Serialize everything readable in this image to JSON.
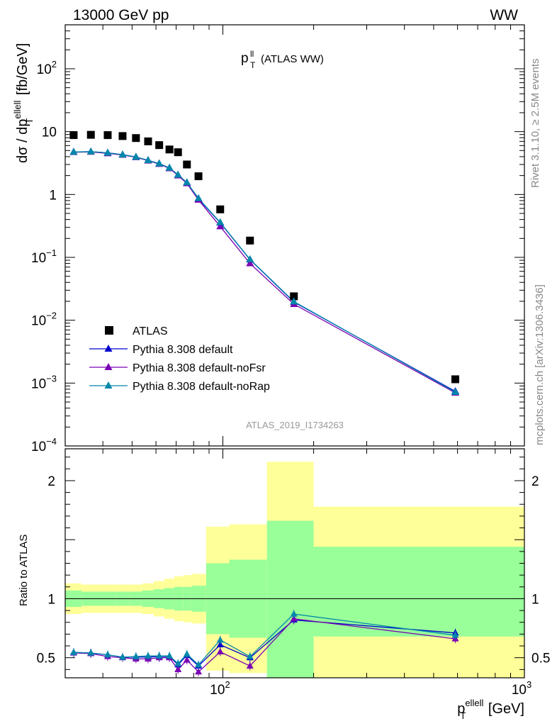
{
  "header": {
    "energy_label": "13000 GeV pp",
    "process_label": "WW",
    "plot_title_main": "p",
    "plot_title_sup": "ll",
    "plot_title_sub": "T",
    "plot_title_tail": " (ATLAS WW)",
    "analysis_label": "ATLAS_2019_I1734263"
  },
  "side_labels": {
    "rivet": "Rivet 3.1.10, ≥ 2.5M events",
    "mcplots": "mcplots.cern.ch [arXiv:1306.3436]"
  },
  "axes": {
    "ylabel_main": "dσ / dp",
    "ylabel_main_sup": "ellell",
    "ylabel_main_sub": "T",
    "ylabel_main_unit": " [fb/GeV]",
    "ylabel_ratio": "Ratio to ATLAS",
    "xlabel_main": "p",
    "xlabel_sup": "ellell",
    "xlabel_sub": "T",
    "xlabel_unit": " [GeV]"
  },
  "legend": {
    "entries": [
      {
        "label": "ATLAS",
        "color": "#000000",
        "marker": "square"
      },
      {
        "label": "Pythia 8.308 default",
        "color": "#0000cc",
        "marker": "triangle"
      },
      {
        "label": "Pythia 8.308 default-noFsr",
        "color": "#7b00b4",
        "marker": "triangle"
      },
      {
        "label": "Pythia 8.308 default-noRap",
        "color": "#0088aa",
        "marker": "triangle"
      }
    ]
  },
  "chart_data": [
    {
      "type": "scatter",
      "panel": "main",
      "x_scale": "log",
      "y_scale": "log",
      "xlim": [
        30,
        1000
      ],
      "ylim": [
        0.0001,
        500
      ],
      "x_ticks": [
        {
          "value": 100,
          "base": "10",
          "exp": "2"
        },
        {
          "value": 1000,
          "base": "10",
          "exp": "3"
        }
      ],
      "y_ticks": [
        {
          "value": 0.0001,
          "base": "10",
          "exp": "−4"
        },
        {
          "value": 0.001,
          "base": "10",
          "exp": "−3"
        },
        {
          "value": 0.01,
          "base": "10",
          "exp": "−2"
        },
        {
          "value": 0.1,
          "base": "10",
          "exp": "−1"
        },
        {
          "value": 1,
          "base": "1",
          "exp": ""
        },
        {
          "value": 10,
          "base": "10",
          "exp": ""
        },
        {
          "value": 100,
          "base": "10",
          "exp": "2"
        }
      ],
      "x": [
        32,
        36.5,
        41.5,
        46.5,
        51.5,
        56.5,
        61.5,
        66.5,
        71,
        76,
        83,
        98,
        123,
        172,
        590
      ],
      "series": [
        {
          "name": "ATLAS",
          "color": "#000000",
          "marker": "square",
          "values": [
            8.8,
            8.9,
            8.8,
            8.5,
            7.9,
            7.0,
            6.1,
            5.2,
            4.7,
            3.0,
            1.95,
            0.58,
            0.185,
            0.024,
            0.00115
          ]
        },
        {
          "name": "Pythia 8.308 default",
          "color": "#0000cc",
          "marker": "triangle",
          "values": [
            4.75,
            4.8,
            4.6,
            4.3,
            3.95,
            3.5,
            3.1,
            2.65,
            2.05,
            1.55,
            0.85,
            0.355,
            0.092,
            0.0195,
            0.00074
          ]
        },
        {
          "name": "Pythia 8.308 default-noFsr",
          "color": "#7b00b4",
          "marker": "triangle",
          "values": [
            4.7,
            4.75,
            4.5,
            4.25,
            3.9,
            3.45,
            3.05,
            2.6,
            2.0,
            1.5,
            0.82,
            0.31,
            0.08,
            0.018,
            0.0007
          ]
        },
        {
          "name": "Pythia 8.308 default-noRap",
          "color": "#0088aa",
          "marker": "triangle",
          "values": [
            4.75,
            4.8,
            4.6,
            4.3,
            3.95,
            3.5,
            3.1,
            2.65,
            2.05,
            1.55,
            0.87,
            0.36,
            0.093,
            0.0198,
            0.00072
          ]
        }
      ]
    },
    {
      "type": "scatter",
      "panel": "ratio",
      "x_scale": "log",
      "y_scale": "linear",
      "xlim": [
        30,
        1000
      ],
      "ylim": [
        0.33,
        2.27
      ],
      "y_ticks": [
        0.5,
        1,
        2
      ],
      "y_tick_labels": [
        "0.5",
        "1",
        "2"
      ],
      "x_tick_labels": [
        {
          "value": 100,
          "base": "10",
          "exp": "2"
        },
        {
          "value": 1000,
          "base": "10",
          "exp": "3"
        }
      ],
      "x": [
        32,
        36.5,
        41.5,
        46.5,
        51.5,
        56.5,
        61.5,
        66.5,
        71,
        76,
        83,
        98,
        123,
        172,
        590
      ],
      "bins": [
        [
          30,
          34
        ],
        [
          34,
          39
        ],
        [
          39,
          44
        ],
        [
          44,
          49
        ],
        [
          49,
          54
        ],
        [
          54,
          59
        ],
        [
          59,
          64
        ],
        [
          64,
          69
        ],
        [
          69,
          74
        ],
        [
          74,
          79
        ],
        [
          79,
          88
        ],
        [
          88,
          105
        ],
        [
          105,
          140
        ],
        [
          140,
          200
        ],
        [
          200,
          1000
        ]
      ],
      "band_inner": [
        [
          0.93,
          1.07
        ],
        [
          0.94,
          1.06
        ],
        [
          0.94,
          1.06
        ],
        [
          0.94,
          1.06
        ],
        [
          0.94,
          1.06
        ],
        [
          0.93,
          1.07
        ],
        [
          0.92,
          1.08
        ],
        [
          0.91,
          1.09
        ],
        [
          0.9,
          1.1
        ],
        [
          0.9,
          1.1
        ],
        [
          0.89,
          1.11
        ],
        [
          0.7,
          1.3
        ],
        [
          0.67,
          1.33
        ],
        [
          0.33,
          1.66
        ],
        [
          0.68,
          1.44
        ]
      ],
      "band_outer": [
        [
          0.87,
          1.13
        ],
        [
          0.88,
          1.12
        ],
        [
          0.88,
          1.12
        ],
        [
          0.88,
          1.12
        ],
        [
          0.88,
          1.12
        ],
        [
          0.87,
          1.13
        ],
        [
          0.85,
          1.15
        ],
        [
          0.83,
          1.17
        ],
        [
          0.81,
          1.19
        ],
        [
          0.8,
          1.2
        ],
        [
          0.79,
          1.21
        ],
        [
          0.39,
          1.61
        ],
        [
          0.37,
          1.63
        ],
        [
          0.33,
          2.16
        ],
        [
          0.33,
          1.78
        ]
      ],
      "band_colors": {
        "inner": "#99ff99",
        "outer": "#ffff99"
      },
      "series": [
        {
          "name": "Pythia 8.308 default",
          "color": "#0000cc",
          "values": [
            0.545,
            0.54,
            0.525,
            0.505,
            0.505,
            0.505,
            0.51,
            0.51,
            0.44,
            0.52,
            0.43,
            0.61,
            0.5,
            0.82,
            0.71
          ]
        },
        {
          "name": "Pythia 8.308 default-noFsr",
          "color": "#7b00b4",
          "values": [
            0.54,
            0.535,
            0.51,
            0.5,
            0.49,
            0.49,
            0.5,
            0.5,
            0.4,
            0.48,
            0.38,
            0.55,
            0.43,
            0.83,
            0.66
          ]
        },
        {
          "name": "Pythia 8.308 default-noRap",
          "color": "#0088aa",
          "values": [
            0.545,
            0.54,
            0.525,
            0.505,
            0.51,
            0.515,
            0.515,
            0.515,
            0.45,
            0.53,
            0.44,
            0.65,
            0.51,
            0.87,
            0.69
          ]
        }
      ]
    }
  ]
}
